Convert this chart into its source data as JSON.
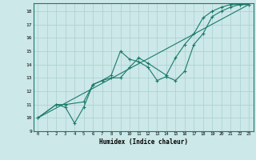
{
  "xlabel": "Humidex (Indice chaleur)",
  "bg_color": "#cce8e8",
  "line_color": "#1a7a6a",
  "grid_color": "#aacfcf",
  "xlim": [
    -0.5,
    23.5
  ],
  "ylim": [
    9,
    18.6
  ],
  "xticks": [
    0,
    1,
    2,
    3,
    4,
    5,
    6,
    7,
    8,
    9,
    10,
    11,
    12,
    13,
    14,
    15,
    16,
    17,
    18,
    19,
    20,
    21,
    22,
    23
  ],
  "yticks": [
    9,
    10,
    11,
    12,
    13,
    14,
    15,
    16,
    17,
    18
  ],
  "line1": {
    "x": [
      0,
      2,
      3,
      4,
      5,
      6,
      7,
      8,
      9,
      10,
      11,
      12,
      13,
      14,
      15,
      16,
      17,
      18,
      19,
      20,
      21,
      22,
      23
    ],
    "y": [
      10,
      11,
      10.8,
      9.6,
      10.8,
      12.5,
      12.8,
      13.2,
      15.0,
      14.4,
      14.2,
      13.8,
      12.8,
      13.1,
      12.8,
      13.5,
      15.5,
      16.3,
      17.6,
      18.0,
      18.3,
      18.5,
      18.5
    ]
  },
  "line2": {
    "x": [
      0,
      2,
      3,
      5,
      6,
      7,
      8,
      9,
      10,
      11,
      12,
      14,
      15,
      16,
      17,
      18,
      19,
      20,
      21,
      22,
      23
    ],
    "y": [
      10,
      11,
      11,
      11.2,
      12.5,
      12.8,
      13.0,
      13.0,
      13.8,
      14.5,
      14.1,
      13.2,
      14.5,
      15.5,
      16.3,
      17.5,
      18.0,
      18.3,
      18.5,
      18.5,
      18.5
    ]
  },
  "line3": {
    "x": [
      0,
      23
    ],
    "y": [
      10,
      18.5
    ]
  }
}
